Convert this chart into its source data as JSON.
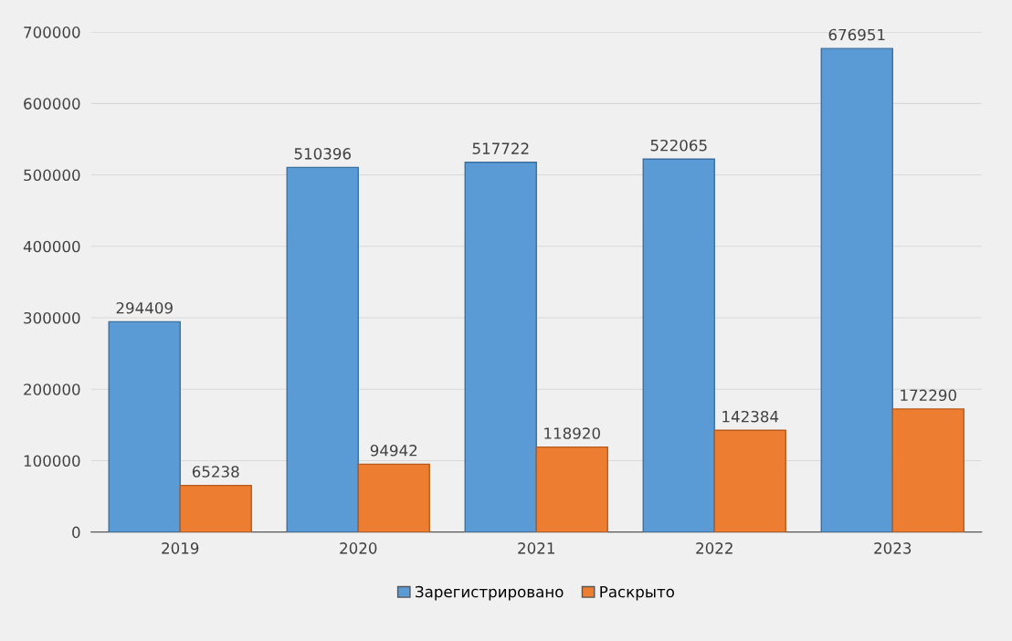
{
  "chart_data": {
    "type": "bar",
    "categories": [
      "2019",
      "2020",
      "2021",
      "2022",
      "2023"
    ],
    "series": [
      {
        "name": "Зарегистрировано",
        "color": "#5b9bd5",
        "values": [
          294409,
          510396,
          517722,
          522065,
          676951
        ]
      },
      {
        "name": "Раскрыто",
        "color": "#ed7d31",
        "values": [
          65238,
          94942,
          118920,
          142384,
          172290
        ]
      }
    ],
    "ylim": [
      0,
      700000
    ],
    "yticks": [
      0,
      100000,
      200000,
      300000,
      400000,
      500000,
      600000,
      700000
    ],
    "grid": "y",
    "legend": "bottom",
    "data_labels": true
  }
}
